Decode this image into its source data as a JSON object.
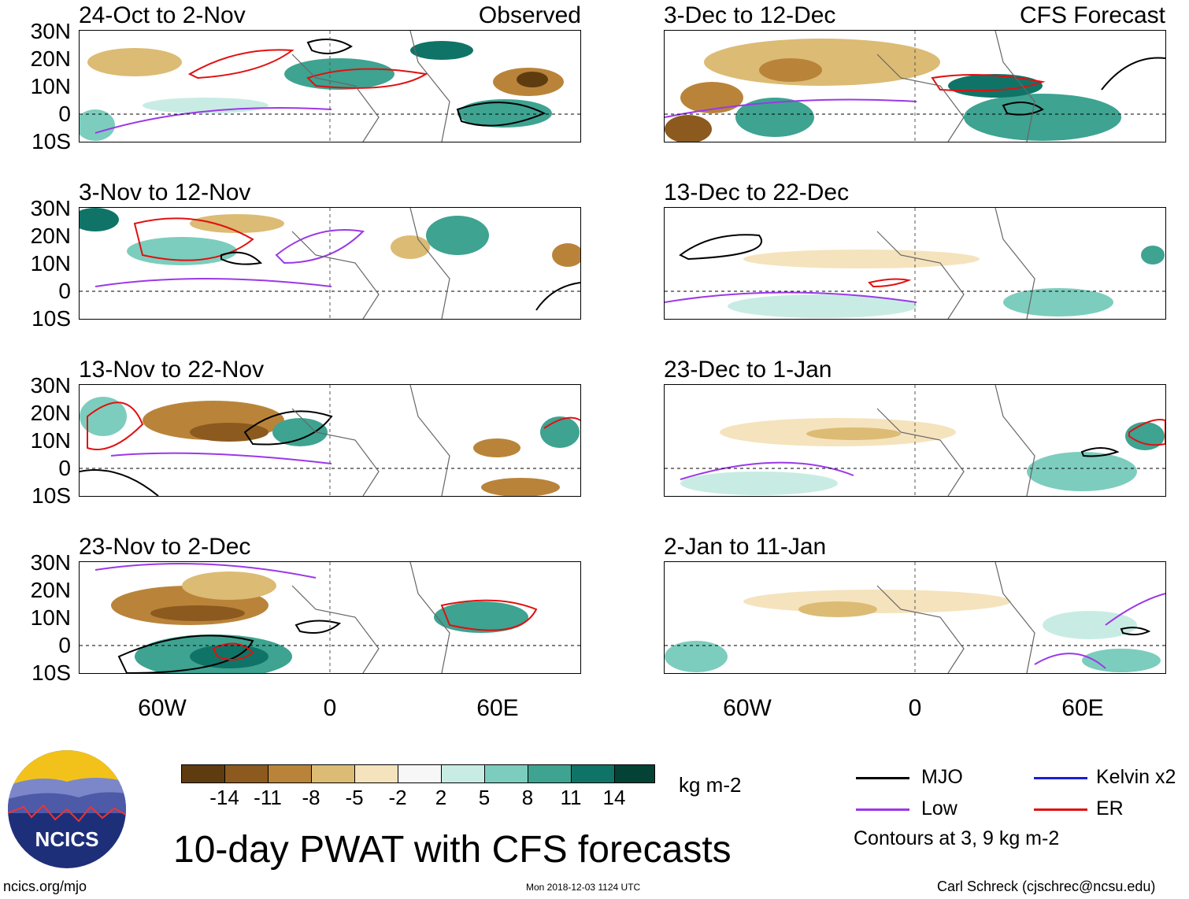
{
  "panels": [
    {
      "period": "24-Oct to 2-Nov",
      "tag": "Observed"
    },
    {
      "period": "3-Nov to 12-Nov",
      "tag": ""
    },
    {
      "period": "13-Nov to 22-Nov",
      "tag": ""
    },
    {
      "period": "23-Nov to 2-Dec",
      "tag": ""
    },
    {
      "period": "3-Dec to 12-Dec",
      "tag": "CFS Forecast"
    },
    {
      "period": "13-Dec to 22-Dec",
      "tag": ""
    },
    {
      "period": "23-Dec to 1-Jan",
      "tag": ""
    },
    {
      "period": "2-Jan to 11-Jan",
      "tag": ""
    }
  ],
  "lat_labels": [
    "30N",
    "20N",
    "10N",
    "0",
    "10S"
  ],
  "lon_labels": [
    "60W",
    "0",
    "60E"
  ],
  "colorbar": {
    "colors": [
      "#5e3c10",
      "#8c5a1e",
      "#b9843a",
      "#dcbb74",
      "#f5e3bd",
      "#f7f7f7",
      "#c8ece4",
      "#7ccdbd",
      "#3ea391",
      "#0f7467",
      "#044236"
    ],
    "tick_labels": [
      "-14",
      "-11",
      "-8",
      "-5",
      "-2",
      "2",
      "5",
      "8",
      "11",
      "14"
    ],
    "units": "kg m-2"
  },
  "legend": {
    "items": [
      {
        "label": "MJO",
        "color": "#000000"
      },
      {
        "label": "Low",
        "color": "#9b38e8"
      },
      {
        "label": "Kelvin x2",
        "color": "#1c1cd6"
      },
      {
        "label": "ER",
        "color": "#e11010"
      }
    ],
    "note": "Contours at 3, 9 kg m-2"
  },
  "logo_text": "NCICS",
  "main_title": "10-day PWAT with CFS forecasts",
  "footer": {
    "left": "ncics.org/mjo",
    "center": "Mon 2018-12-03 1124 UTC",
    "right": "Carl Schreck (cjschrec@ncsu.edu)"
  }
}
